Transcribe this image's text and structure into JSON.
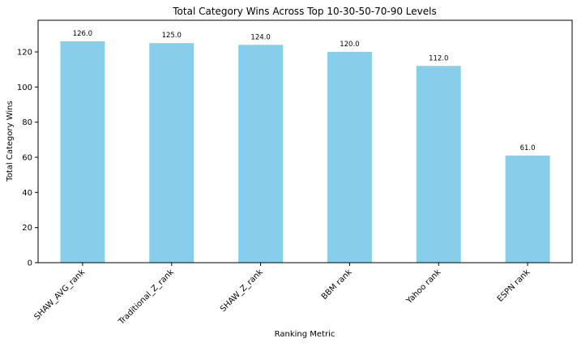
{
  "chart_data": {
    "type": "bar",
    "title": "Total Category Wins Across Top 10-30-50-70-90 Levels",
    "xlabel": "Ranking Metric",
    "ylabel": "Total Category Wins",
    "categories": [
      "SHAW_AVG_rank",
      "Traditional_Z_rank",
      "SHAW_Z_rank",
      "BBM rank",
      "Yahoo rank",
      "ESPN rank"
    ],
    "values": [
      126.0,
      125.0,
      124.0,
      120.0,
      112.0,
      61.0
    ],
    "data_labels": [
      "126.0",
      "125.0",
      "124.0",
      "120.0",
      "112.0",
      "61.0"
    ],
    "ylim": [
      0,
      138
    ],
    "yticks": [
      0,
      20,
      40,
      60,
      80,
      100,
      120
    ],
    "ytick_labels": [
      "0",
      "20",
      "40",
      "60",
      "80",
      "100",
      "120"
    ],
    "bar_color": "#87ceeb",
    "grid": false,
    "legend": "none"
  }
}
